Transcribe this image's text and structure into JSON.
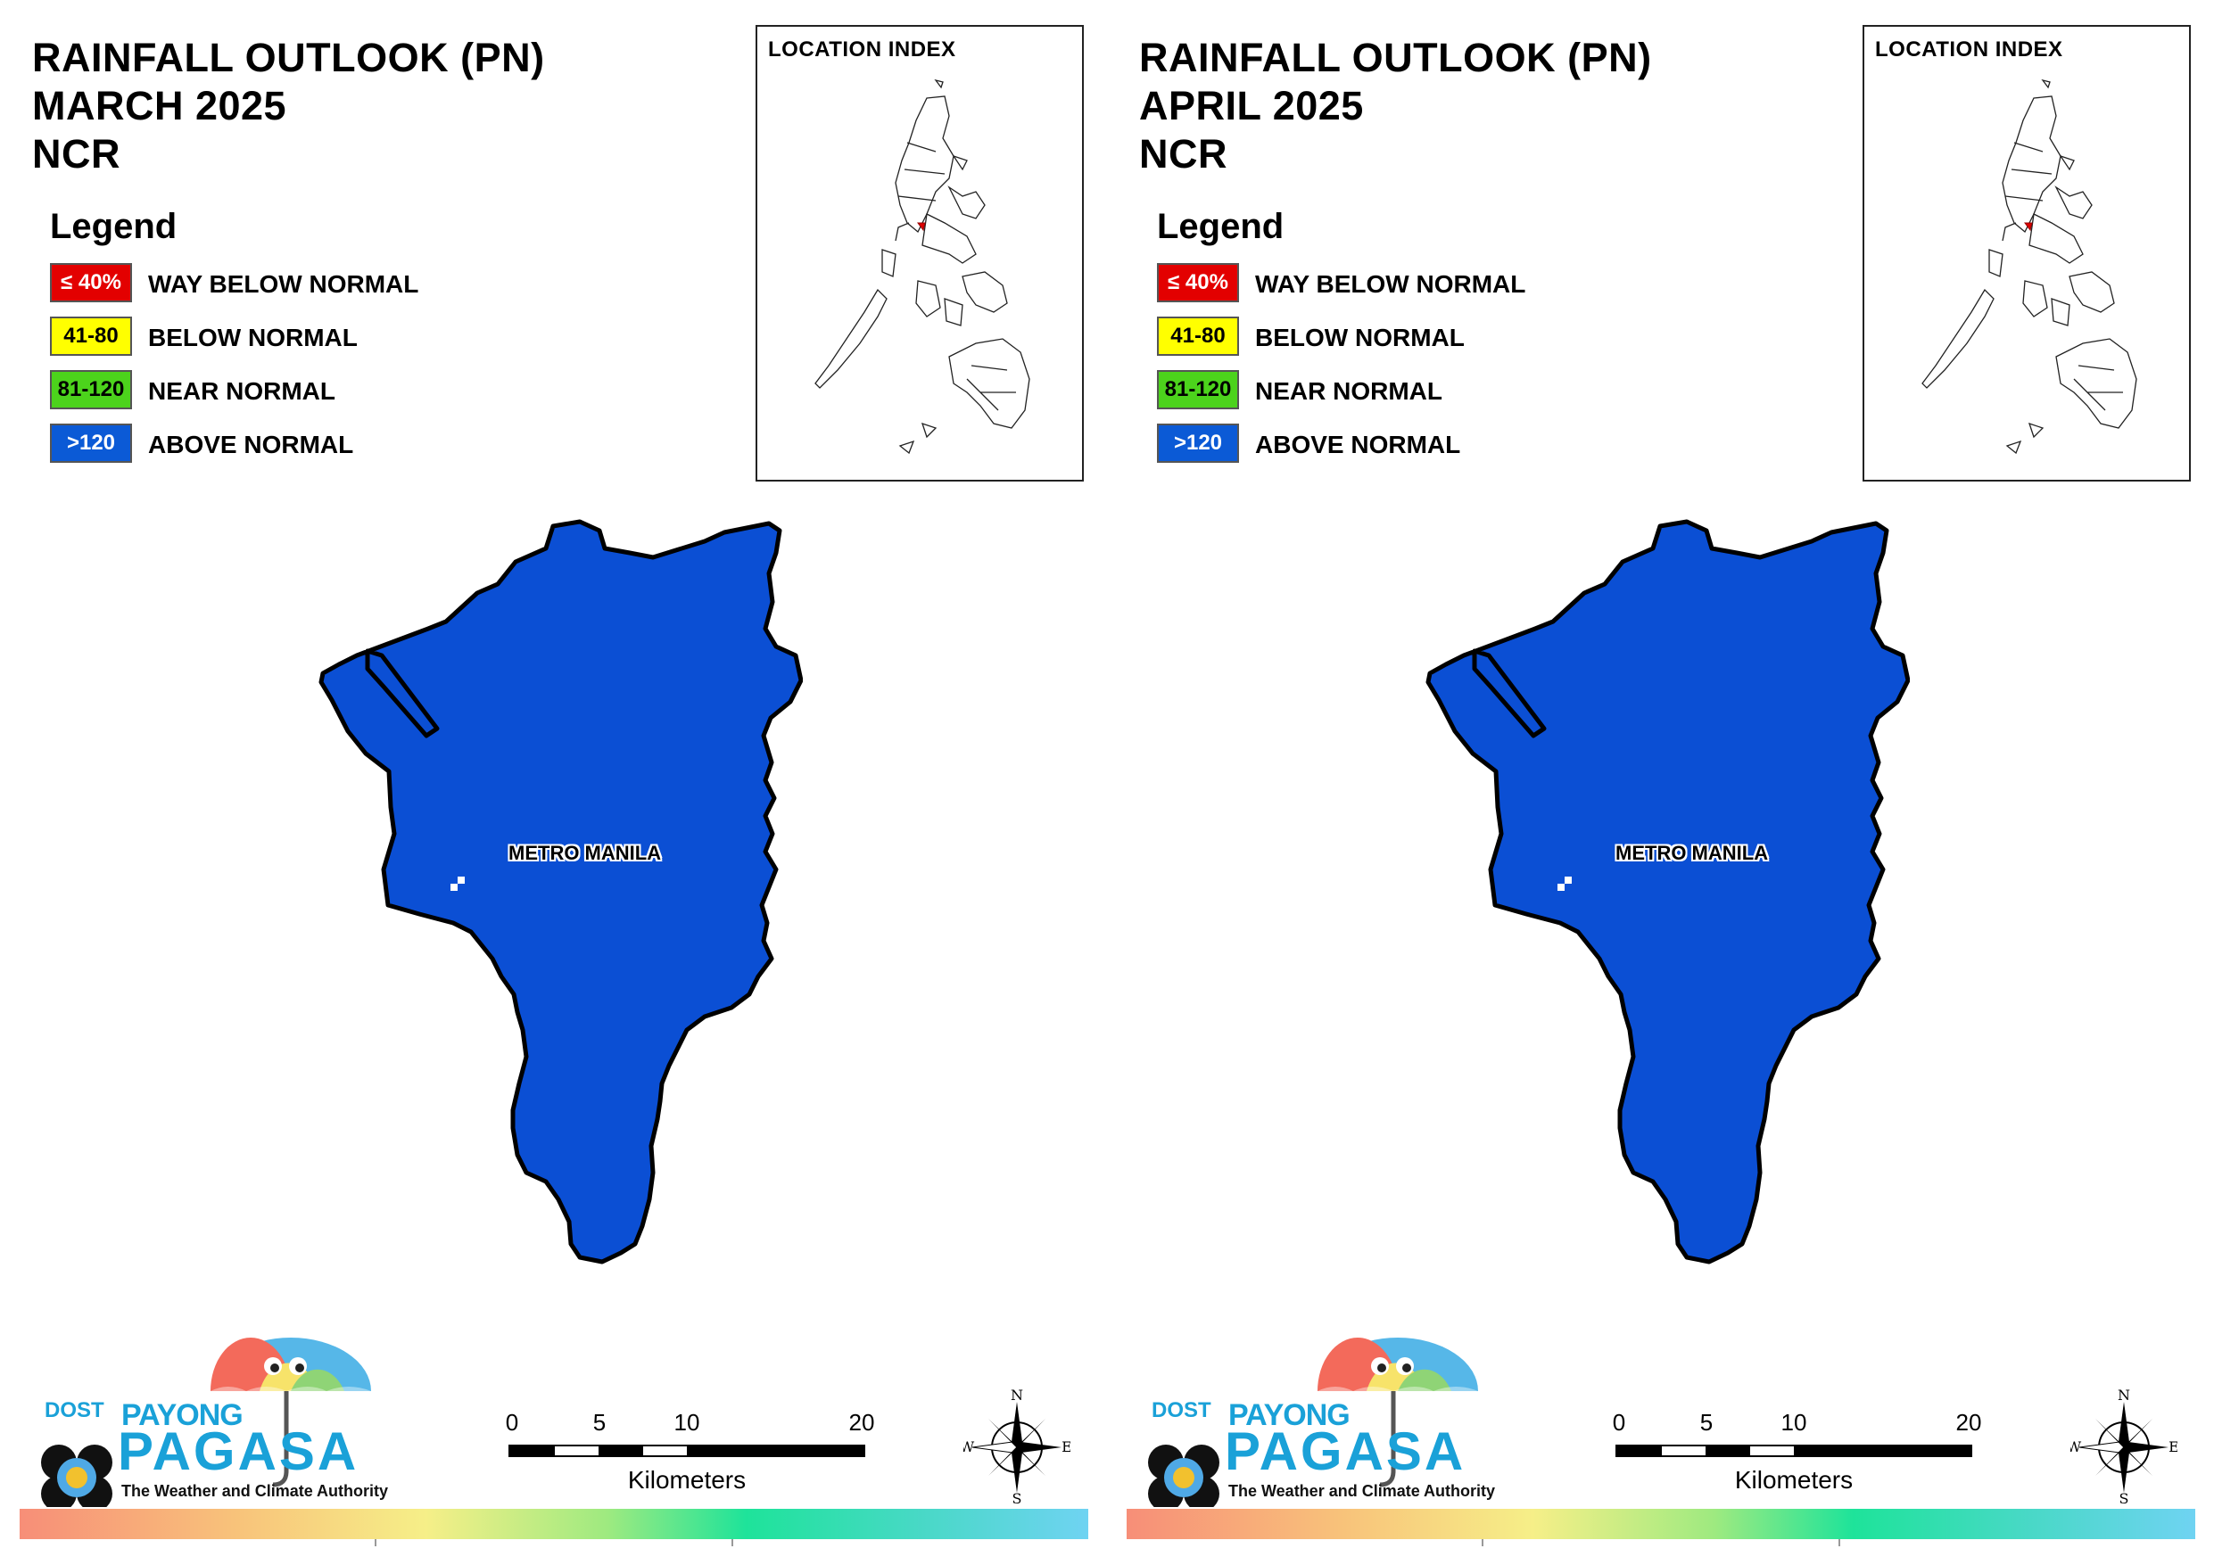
{
  "panels": [
    {
      "title_line1": "RAINFALL OUTLOOK (PN)",
      "title_line2": "MARCH 2025",
      "title_line3": "NCR",
      "map_label": "METRO MANILA"
    },
    {
      "title_line1": "RAINFALL OUTLOOK (PN)",
      "title_line2": "APRIL 2025",
      "title_line3": "NCR",
      "map_label": "METRO MANILA"
    }
  ],
  "legend": {
    "heading": "Legend",
    "items": [
      {
        "swatch": "≤ 40%",
        "label": "WAY BELOW NORMAL",
        "color": "#e30000",
        "text_color": "#ffffff"
      },
      {
        "swatch": "41-80",
        "label": "BELOW NORMAL",
        "color": "#ffff00",
        "text_color": "#000000"
      },
      {
        "swatch": "81-120",
        "label": "NEAR NORMAL",
        "color": "#4cd31c",
        "text_color": "#000000"
      },
      {
        "swatch": ">120",
        "label": "ABOVE NORMAL",
        "color": "#0b5ad6",
        "text_color": "#ffffff"
      }
    ]
  },
  "location_index": {
    "title": "LOCATION INDEX"
  },
  "scale": {
    "ticks": [
      "0",
      "5",
      "10",
      "20"
    ],
    "unit": "Kilometers"
  },
  "compass": {
    "n": "N",
    "s": "S",
    "e": "E",
    "w": "W"
  },
  "logo": {
    "dost": "DOST",
    "payong": "PAYONG",
    "pagasa": "PAGASA",
    "tagline": "The Weather and Climate Authority"
  },
  "map_fill_color": "#0b4fd4"
}
